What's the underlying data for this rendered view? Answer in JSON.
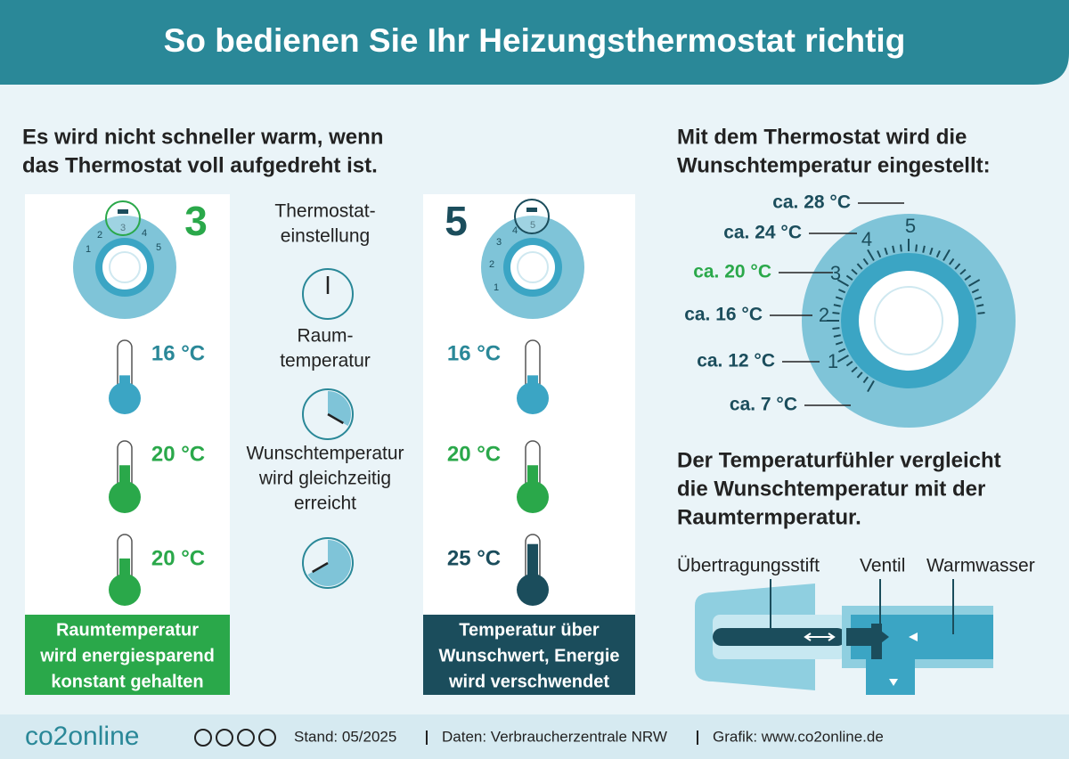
{
  "header": {
    "title": "So bedienen Sie Ihr Heizungsthermostat richtig"
  },
  "left": {
    "heading": [
      "Es wird nicht schneller warm, wenn",
      "das Thermostat voll aufgedreht ist."
    ],
    "dial_labels": [
      "1",
      "2",
      "3",
      "4",
      "5"
    ],
    "middle": {
      "setting_label": [
        "Thermostat-",
        "einstellung"
      ],
      "room_label": [
        "Raum-",
        "temperatur"
      ],
      "target_label": [
        "Wunschtemperatur",
        "wird gleichzeitig",
        "erreicht"
      ]
    },
    "columns": [
      {
        "setting": "3",
        "temperatures": [
          "16 °C",
          "20 °C",
          "20 °C"
        ],
        "note": [
          "Raumtemperatur",
          "wird energiesparend",
          "konstant gehalten"
        ]
      },
      {
        "setting": "5",
        "temperatures": [
          "16 °C",
          "20 °C",
          "25 °C"
        ],
        "note": [
          "Temperatur über",
          "Wunschwert, Energie",
          "wird verschwendet"
        ]
      }
    ]
  },
  "right": {
    "heading": [
      "Mit dem Thermostat wird die",
      "Wunschtemperatur eingestellt:"
    ],
    "scale_labels": [
      "ca. 28 °C",
      "ca. 24 °C",
      "ca. 20 °C",
      "ca. 16 °C",
      "ca. 12 °C",
      "ca. 7 °C"
    ],
    "sensor_heading": [
      "Der Temperaturfühler vergleicht",
      "die Wunschtemperatur mit der",
      "Raumtermperatur."
    ],
    "valve_labels": [
      "Übertragungsstift",
      "Ventil",
      "Warmwasser"
    ]
  },
  "footer": {
    "logo": "co2online",
    "stand": "Stand: 05/2025",
    "source": "Daten: Verbraucherzentrale NRW",
    "graphic": "Grafik: www.co2online.de"
  }
}
